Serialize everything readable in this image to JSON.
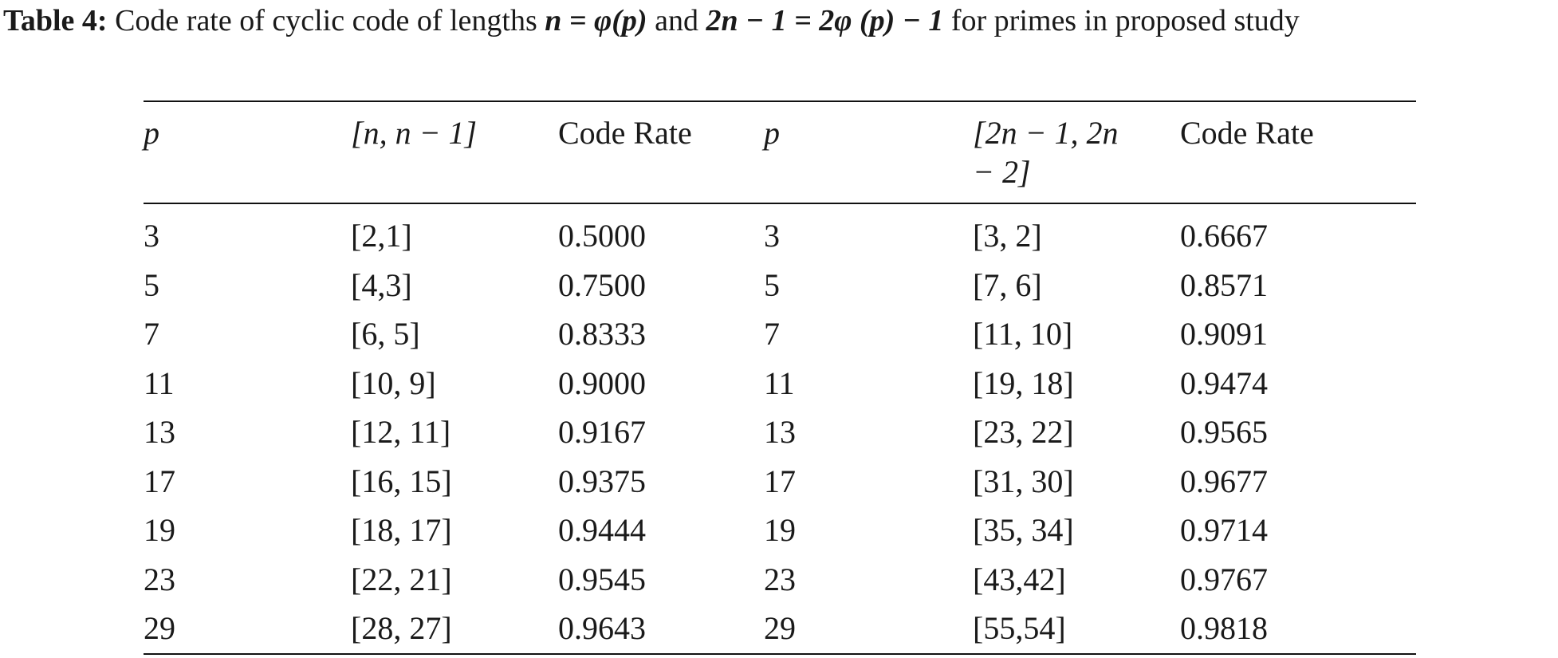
{
  "caption": {
    "label": "Table 4:",
    "text_a": "Code rate of cyclic code of lengths",
    "math_1": "n = φ(p)",
    "text_b": "and",
    "math_2": "2n − 1 = 2φ (p) − 1",
    "text_c": "for primes in proposed study"
  },
  "table": {
    "headers": {
      "p1": "p",
      "code1": "[n, n − 1]",
      "rate1": "Code Rate",
      "p2": "p",
      "code2": "[2n − 1, 2n − 2]",
      "rate2": "Code Rate"
    },
    "rows": [
      [
        "3",
        "[2,1]",
        "0.5000",
        "3",
        "[3, 2]",
        "0.6667"
      ],
      [
        "5",
        "[4,3]",
        "0.7500",
        "5",
        "[7, 6]",
        "0.8571"
      ],
      [
        "7",
        "[6, 5]",
        "0.8333",
        "7",
        "[11, 10]",
        "0.9091"
      ],
      [
        "11",
        "[10, 9]",
        "0.9000",
        "11",
        "[19, 18]",
        "0.9474"
      ],
      [
        "13",
        "[12, 11]",
        "0.9167",
        "13",
        "[23, 22]",
        "0.9565"
      ],
      [
        "17",
        "[16, 15]",
        "0.9375",
        "17",
        "[31, 30]",
        "0.9677"
      ],
      [
        "19",
        "[18, 17]",
        "0.9444",
        "19",
        "[35, 34]",
        "0.9714"
      ],
      [
        "23",
        "[22, 21]",
        "0.9545",
        "23",
        "[43,42]",
        "0.9767"
      ],
      [
        "29",
        "[28, 27]",
        "0.9643",
        "29",
        "[55,54]",
        "0.9818"
      ]
    ]
  }
}
